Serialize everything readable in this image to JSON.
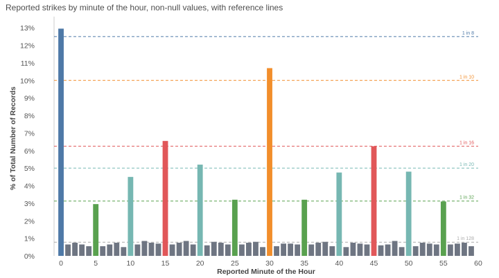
{
  "title": "Reported strikes by minute of the hour, non-null values, with reference lines",
  "chart_data": {
    "type": "bar",
    "title": "Reported strikes by minute of the hour, non-null values, with reference lines",
    "xlabel": "Reported Minute of the Hour",
    "ylabel": "% of Total Number of Records",
    "x_ticks": [
      0,
      5,
      10,
      15,
      20,
      25,
      30,
      35,
      40,
      45,
      50,
      55,
      60
    ],
    "y_ticks": [
      0,
      1,
      2,
      3,
      4,
      5,
      6,
      7,
      8,
      9,
      10,
      11,
      12,
      13
    ],
    "y_tick_labels": [
      "0%",
      "1%",
      "2%",
      "3%",
      "4%",
      "5%",
      "6%",
      "7%",
      "8%",
      "9%",
      "10%",
      "11%",
      "12%",
      "13%"
    ],
    "ylim": [
      0,
      13.4
    ],
    "xlim": [
      -1,
      60
    ],
    "grid": false,
    "categories": [
      0,
      1,
      2,
      3,
      4,
      5,
      6,
      7,
      8,
      9,
      10,
      11,
      12,
      13,
      14,
      15,
      16,
      17,
      18,
      19,
      20,
      21,
      22,
      23,
      24,
      25,
      26,
      27,
      28,
      29,
      30,
      31,
      32,
      33,
      34,
      35,
      36,
      37,
      38,
      39,
      40,
      41,
      42,
      43,
      44,
      45,
      46,
      47,
      48,
      49,
      50,
      51,
      52,
      53,
      54,
      55,
      56,
      57,
      58,
      59
    ],
    "values": [
      12.95,
      0.65,
      0.75,
      0.65,
      0.55,
      2.95,
      0.55,
      0.65,
      0.75,
      0.5,
      4.5,
      0.65,
      0.85,
      0.75,
      0.7,
      6.55,
      0.65,
      0.75,
      0.85,
      0.65,
      5.2,
      0.6,
      0.8,
      0.75,
      0.65,
      3.2,
      0.65,
      0.75,
      0.8,
      0.5,
      10.7,
      0.55,
      0.7,
      0.7,
      0.65,
      3.2,
      0.65,
      0.75,
      0.8,
      0.55,
      4.75,
      0.5,
      0.75,
      0.7,
      0.65,
      6.25,
      0.6,
      0.65,
      0.85,
      0.5,
      4.8,
      0.55,
      0.75,
      0.7,
      0.65,
      3.1,
      0.65,
      0.7,
      0.75,
      0.55
    ],
    "bar_colors": {
      "default": "#6e7582",
      "minute_0": "#4e79a7",
      "multiple_of_5": "#59a14f",
      "multiple_of_10": "#76b7b2",
      "quarter": "#e15759",
      "half": "#f28e2b"
    },
    "reference_lines": [
      {
        "label": "1 in 8",
        "value": 12.5,
        "color": "#4e79a7"
      },
      {
        "label": "1 in 10",
        "value": 10.0,
        "color": "#f28e2b"
      },
      {
        "label": "1 in 16",
        "value": 6.25,
        "color": "#e15759"
      },
      {
        "label": "1 in 20",
        "value": 5.0,
        "color": "#76b7b2"
      },
      {
        "label": "1 in 32",
        "value": 3.125,
        "color": "#59a14f"
      },
      {
        "label": "1 in 128",
        "value": 0.78,
        "color": "#aaaaaa"
      }
    ]
  }
}
